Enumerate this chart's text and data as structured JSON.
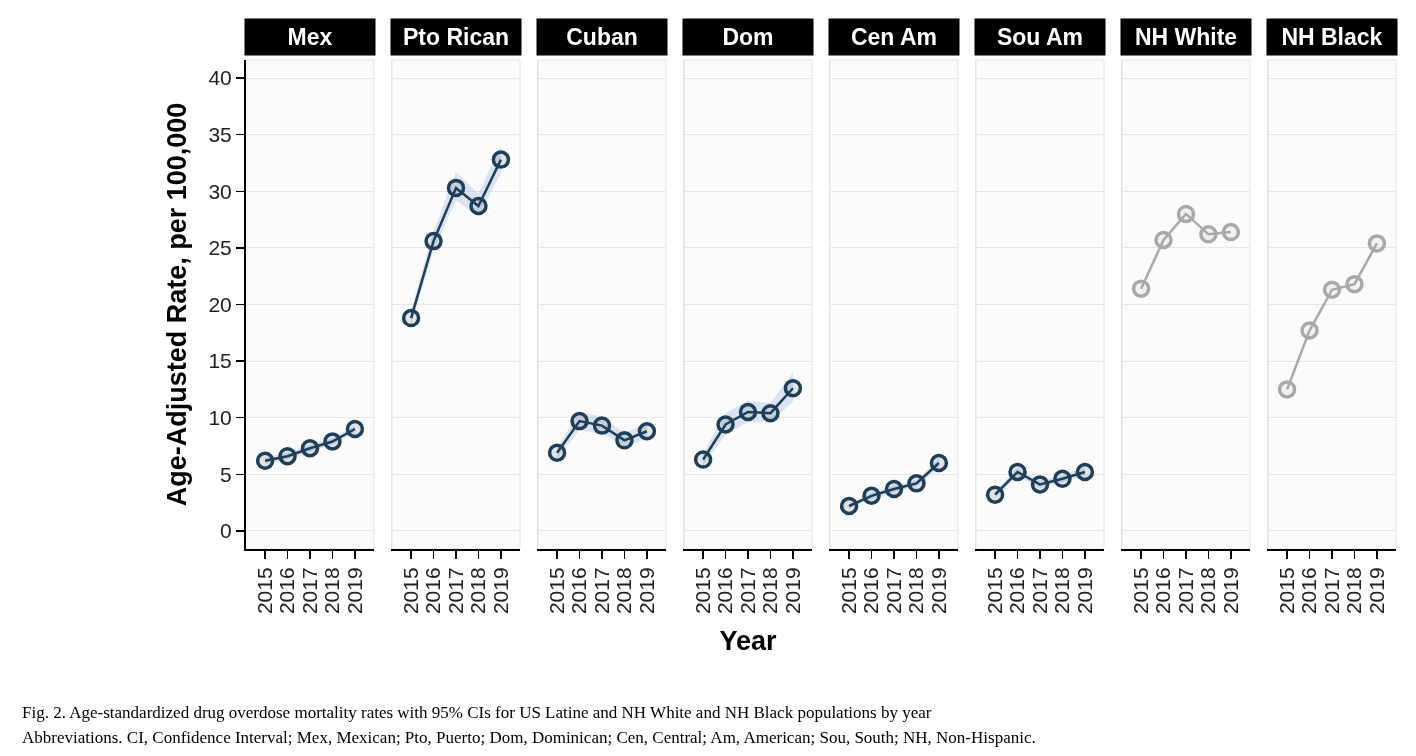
{
  "chart_data": [
    {
      "type": "line",
      "title": "Mex",
      "ylabel": "Age-Adjusted Rate, per 100,000",
      "annotations": [
        "Fig. 2. Age-standardized drug overdose mortality rates with 95% CIs for US Latine and NH White and NH Black populations by year",
        "Abbreviations. CI, Confidence Interval; Mex, Mexican; Pto, Puerto; Dom, Dominican; Cen, Central; Am, American; Sou, South; NH, Non-Hispanic."
      ],
      "categories": [
        "2015",
        "2016",
        "2017",
        "2018",
        "2019"
      ],
      "series": [
        {
          "color": "#1f3e58",
          "values": [
            6.2,
            6.6,
            7.3,
            7.9,
            9.0
          ],
          "lower": [
            5.9,
            6.3,
            7.0,
            7.6,
            8.7
          ],
          "upper": [
            6.5,
            6.9,
            7.6,
            8.2,
            9.3
          ]
        }
      ],
      "ylim": [
        -1.6,
        41.6
      ],
      "yticks": [
        0,
        5,
        10,
        15,
        20,
        25,
        30,
        35,
        40
      ],
      "grid": "y",
      "marker": "circle"
    },
    {
      "type": "line",
      "title": "Pto Rican",
      "categories": [
        "2015",
        "2016",
        "2017",
        "2018",
        "2019"
      ],
      "series": [
        {
          "color": "#1f3e58",
          "values": [
            18.8,
            25.6,
            30.3,
            28.7,
            32.8
          ],
          "lower": [
            18.2,
            24.8,
            29.2,
            27.8,
            31.6
          ],
          "upper": [
            19.5,
            26.5,
            31.7,
            29.8,
            34.1
          ]
        }
      ],
      "ylim": [
        -1.6,
        41.6
      ],
      "yticks": [
        0,
        5,
        10,
        15,
        20,
        25,
        30,
        35,
        40
      ],
      "grid": "y",
      "marker": "circle",
      "tick_labels": "x"
    },
    {
      "type": "line",
      "title": "Cuban",
      "categories": [
        "2015",
        "2016",
        "2017",
        "2018",
        "2019"
      ],
      "series": [
        {
          "color": "#1f3e58",
          "values": [
            6.9,
            9.7,
            9.3,
            8.0,
            8.8
          ],
          "lower": [
            6.4,
            8.9,
            8.6,
            7.5,
            8.1
          ],
          "upper": [
            7.4,
            10.5,
            10.1,
            8.6,
            9.6
          ]
        }
      ],
      "ylim": [
        -1.6,
        41.6
      ],
      "yticks": [
        0,
        5,
        10,
        15,
        20,
        25,
        30,
        35,
        40
      ],
      "grid": "y",
      "marker": "circle",
      "tick_labels": "x"
    },
    {
      "type": "line",
      "title": "Dom",
      "xlabel": "Year",
      "categories": [
        "2015",
        "2016",
        "2017",
        "2018",
        "2019"
      ],
      "series": [
        {
          "color": "#1f3e58",
          "values": [
            6.3,
            9.4,
            10.5,
            10.4,
            12.6
          ],
          "lower": [
            5.8,
            8.5,
            9.6,
            9.6,
            11.4
          ],
          "upper": [
            6.9,
            10.4,
            11.5,
            11.3,
            14.0
          ]
        }
      ],
      "ylim": [
        -1.6,
        41.6
      ],
      "yticks": [
        0,
        5,
        10,
        15,
        20,
        25,
        30,
        35,
        40
      ],
      "grid": "y",
      "marker": "circle",
      "tick_labels": "x"
    },
    {
      "type": "line",
      "title": "Cen Am",
      "categories": [
        "2015",
        "2016",
        "2017",
        "2018",
        "2019"
      ],
      "series": [
        {
          "color": "#1f3e58",
          "values": [
            2.2,
            3.1,
            3.7,
            4.2,
            6.0
          ],
          "lower": [
            2.0,
            2.8,
            3.4,
            3.9,
            5.6
          ],
          "upper": [
            2.4,
            3.4,
            4.0,
            4.5,
            6.4
          ]
        }
      ],
      "ylim": [
        -1.6,
        41.6
      ],
      "yticks": [
        0,
        5,
        10,
        15,
        20,
        25,
        30,
        35,
        40
      ],
      "grid": "y",
      "marker": "circle",
      "tick_labels": "x"
    },
    {
      "type": "line",
      "title": "Sou Am",
      "categories": [
        "2015",
        "2016",
        "2017",
        "2018",
        "2019"
      ],
      "series": [
        {
          "color": "#1f3e58",
          "values": [
            3.2,
            5.2,
            4.1,
            4.6,
            5.2
          ],
          "lower": [
            2.9,
            4.8,
            3.8,
            4.3,
            4.9
          ],
          "upper": [
            3.5,
            5.6,
            4.4,
            4.9,
            5.6
          ]
        }
      ],
      "ylim": [
        -1.6,
        41.6
      ],
      "yticks": [
        0,
        5,
        10,
        15,
        20,
        25,
        30,
        35,
        40
      ],
      "grid": "y",
      "marker": "circle",
      "tick_labels": "x"
    },
    {
      "type": "line",
      "title": "NH White",
      "categories": [
        "2015",
        "2016",
        "2017",
        "2018",
        "2019"
      ],
      "series": [
        {
          "color": "#a9a9a9",
          "values": [
            21.4,
            25.7,
            28.0,
            26.2,
            26.4
          ]
        }
      ],
      "ylim": [
        -1.6,
        41.6
      ],
      "yticks": [
        0,
        5,
        10,
        15,
        20,
        25,
        30,
        35,
        40
      ],
      "grid": "y",
      "marker": "circle",
      "tick_labels": "x"
    },
    {
      "type": "line",
      "title": "NH Black",
      "categories": [
        "2015",
        "2016",
        "2017",
        "2018",
        "2019"
      ],
      "series": [
        {
          "color": "#a9a9a9",
          "values": [
            12.5,
            17.7,
            21.3,
            21.8,
            25.4
          ]
        }
      ],
      "ylim": [
        -1.6,
        41.6
      ],
      "yticks": [
        0,
        5,
        10,
        15,
        20,
        25,
        30,
        35,
        40
      ],
      "grid": "y",
      "marker": "circle",
      "tick_labels": "x"
    }
  ]
}
